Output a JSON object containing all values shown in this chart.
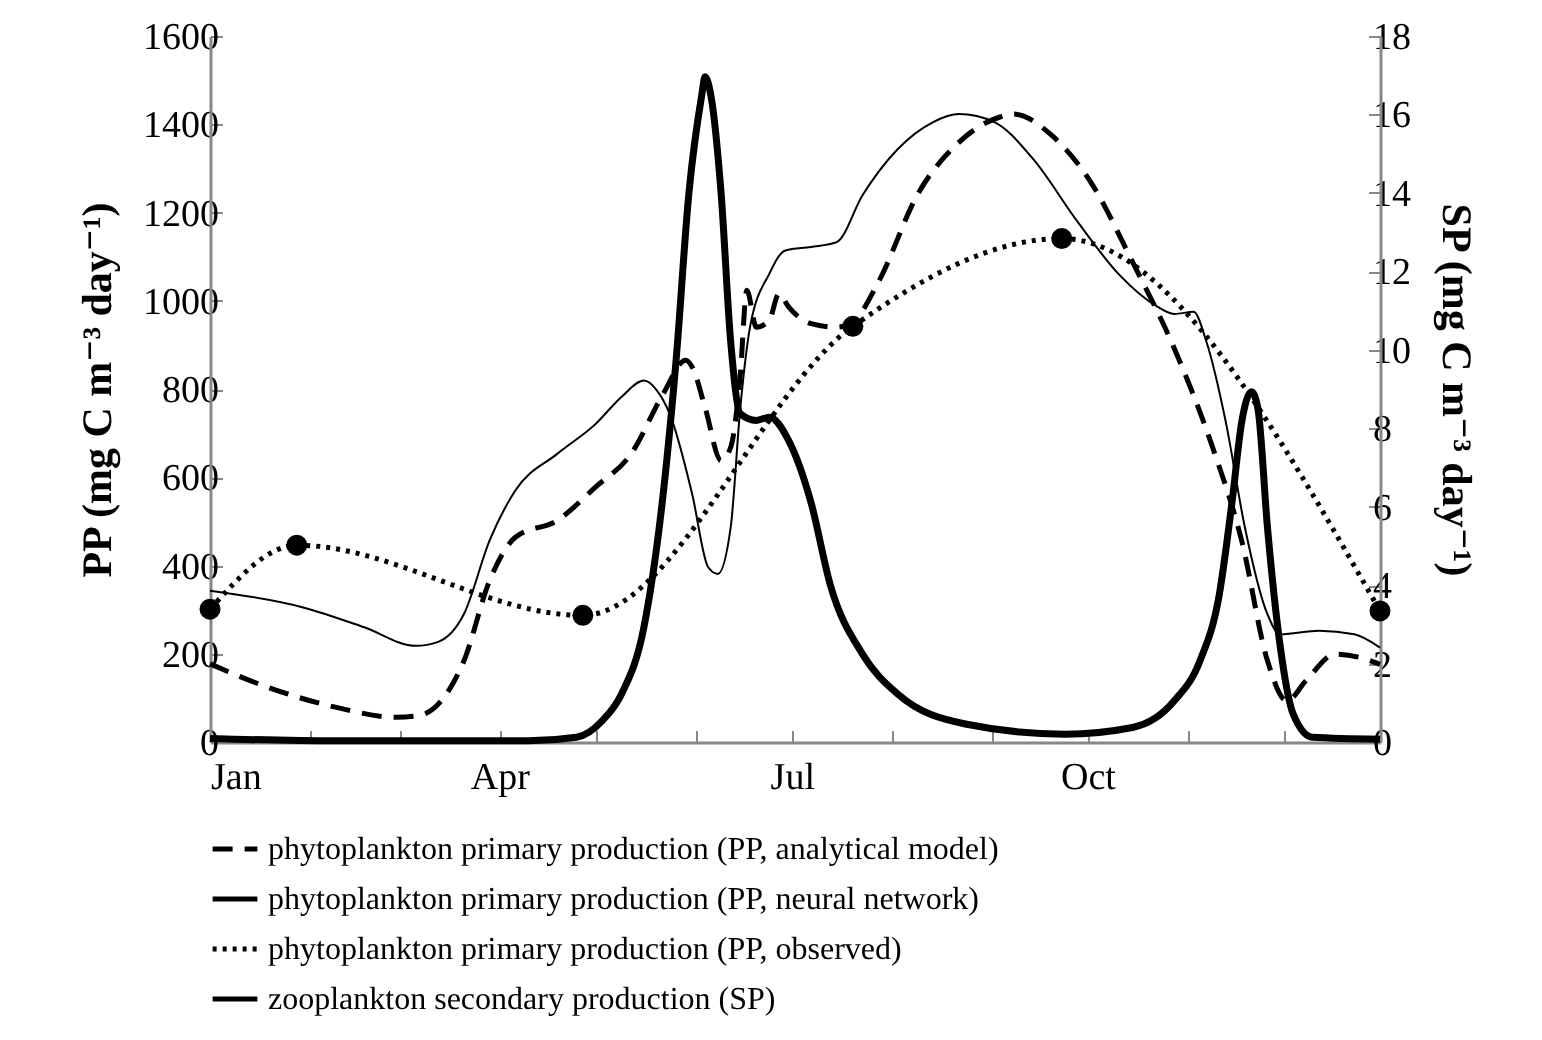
{
  "chart_data": {
    "type": "line",
    "ylabel": "PP (mg C m⁻³ day⁻¹)",
    "y2label": "SP (mg C m⁻³ day⁻¹)",
    "xlim": [
      "--01-01",
      "--12-31"
    ],
    "xticks": [
      {
        "value": "--01-01",
        "label": "Jan"
      },
      {
        "value": "--02-01",
        "label": null
      },
      {
        "value": "--03-01",
        "label": null
      },
      {
        "value": "--04-01",
        "label": "Apr"
      },
      {
        "value": "--05-01",
        "label": null
      },
      {
        "value": "--06-01",
        "label": null
      },
      {
        "value": "--07-01",
        "label": "Jul"
      },
      {
        "value": "--08-01",
        "label": null
      },
      {
        "value": "--09-01",
        "label": null
      },
      {
        "value": "--10-01",
        "label": "Oct"
      },
      {
        "value": "--11-01",
        "label": null
      },
      {
        "value": "--12-01",
        "label": null
      }
    ],
    "ylim": [
      0,
      1600
    ],
    "yticks": [
      0,
      200,
      400,
      600,
      800,
      1000,
      1200,
      1400,
      1600
    ],
    "y2lim": [
      0,
      18
    ],
    "y2ticks": [
      0,
      2,
      4,
      6,
      8,
      10,
      12,
      14,
      16,
      18
    ],
    "grid": false,
    "legend": "bottom",
    "series": [
      {
        "name": "phytoplankton primary production (PP, analytical model)",
        "color": "#000000",
        "line_style": "dashed",
        "x": [
          "--01-01",
          "--01-19",
          "--02-09",
          "--02-28",
          "--03-07",
          "--03-14",
          "--03-21",
          "--03-29",
          "--04-06",
          "--04-19",
          "--05-01",
          "--05-12",
          "--05-22",
          "--05-29",
          "--05-31",
          "--06-04",
          "--06-09",
          "--06-12",
          "--06-15",
          "--06-17",
          "--06-20",
          "--06-24",
          "--06-27",
          "--06-30",
          "--07-07",
          "--07-15",
          "--07-20",
          "--07-28",
          "--08-09",
          "--08-22",
          "--09-04",
          "--09-08",
          "--09-20",
          "--10-02",
          "--10-15",
          "--10-28",
          "--11-09",
          "--11-18",
          "--11-26",
          "--12-02",
          "--12-08",
          "--12-17",
          "--12-25",
          "--12-31"
        ],
        "values": [
          177,
          124,
          79,
          56,
          60,
          94,
          184,
          366,
          464,
          502,
          578,
          653,
          789,
          865,
          850,
          759,
          638,
          668,
          835,
          1024,
          940,
          956,
          1016,
          986,
          948,
          940,
          952,
          1043,
          1239,
          1359,
          1417,
          1423,
          1374,
          1269,
          1088,
          892,
          666,
          455,
          184,
          93,
          139,
          199,
          191,
          176
        ]
      },
      {
        "name": "phytoplankton primary production (PP, neural network)",
        "color": "#000000",
        "line_style": "solid",
        "x": [
          "--01-01",
          "--01-30",
          "--02-18",
          "--03-06",
          "--03-13",
          "--03-21",
          "--03-29",
          "--04-06",
          "--04-19",
          "--05-01",
          "--05-09",
          "--05-16",
          "--05-20",
          "--05-24",
          "--05-31",
          "--06-05",
          "--06-08",
          "--06-12",
          "--06-15",
          "--06-18",
          "--06-24",
          "--06-29",
          "--07-07",
          "--07-15",
          "--07-23",
          "--08-03",
          "--08-14",
          "--08-22",
          "--09-02",
          "--09-14",
          "--09-28",
          "--10-11",
          "--10-22",
          "--10-28",
          "--11-03",
          "--11-07",
          "--11-13",
          "--11-19",
          "--11-26",
          "--11-30",
          "--12-12",
          "--12-23",
          "--12-31"
        ],
        "values": [
          343,
          305,
          260,
          218,
          227,
          290,
          457,
          570,
          653,
          721,
          782,
          819,
          797,
          744,
          562,
          396,
          381,
          487,
          759,
          940,
          1061,
          1114,
          1122,
          1133,
          1239,
          1344,
          1405,
          1423,
          1405,
          1322,
          1178,
          1058,
          990,
          970,
          975,
          907,
          726,
          485,
          289,
          244,
          252,
          244,
          214
        ]
      },
      {
        "name": "phytoplankton primary production (PP, observed)",
        "color": "#000000",
        "line_style": "dotted",
        "marker": "circle",
        "x": [
          "--01-01",
          "--01-28",
          "--04-27",
          "--07-20",
          "--09-23",
          "--12-31"
        ],
        "values": [
          301,
          446,
          287,
          942,
          1141,
          297
        ]
      },
      {
        "name": "zooplankton secondary production (SP)",
        "color": "#000000",
        "line_style": "solid",
        "axis": "y2",
        "x": [
          "--01-01",
          "--02-09",
          "--04-10",
          "--04-25",
          "--05-03",
          "--05-09",
          "--05-16",
          "--05-22",
          "--05-26",
          "--05-30",
          "--06-03",
          "--06-04",
          "--06-06",
          "--06-09",
          "--06-12",
          "--06-15",
          "--06-20",
          "--06-24",
          "--06-30",
          "--07-07",
          "--07-13",
          "--07-23",
          "--08-03",
          "--08-24",
          "--09-24",
          "--10-15",
          "--10-28",
          "--11-05",
          "--11-11",
          "--11-15",
          "--11-18",
          "--11-21",
          "--11-23",
          "--11-26",
          "--11-30",
          "--12-04",
          "--12-10",
          "--12-31"
        ],
        "values": [
          0.09,
          0.03,
          0.03,
          0.12,
          0.54,
          1.22,
          2.93,
          6.33,
          9.73,
          14.0,
          16.5,
          16.96,
          16.4,
          14.0,
          10.2,
          8.37,
          8.2,
          8.28,
          7.69,
          6.1,
          4.0,
          2.24,
          1.22,
          0.46,
          0.2,
          0.37,
          1.05,
          2.07,
          3.76,
          6.14,
          8.17,
          8.93,
          8.51,
          5.46,
          2.41,
          0.71,
          0.12,
          0.07
        ]
      }
    ]
  }
}
